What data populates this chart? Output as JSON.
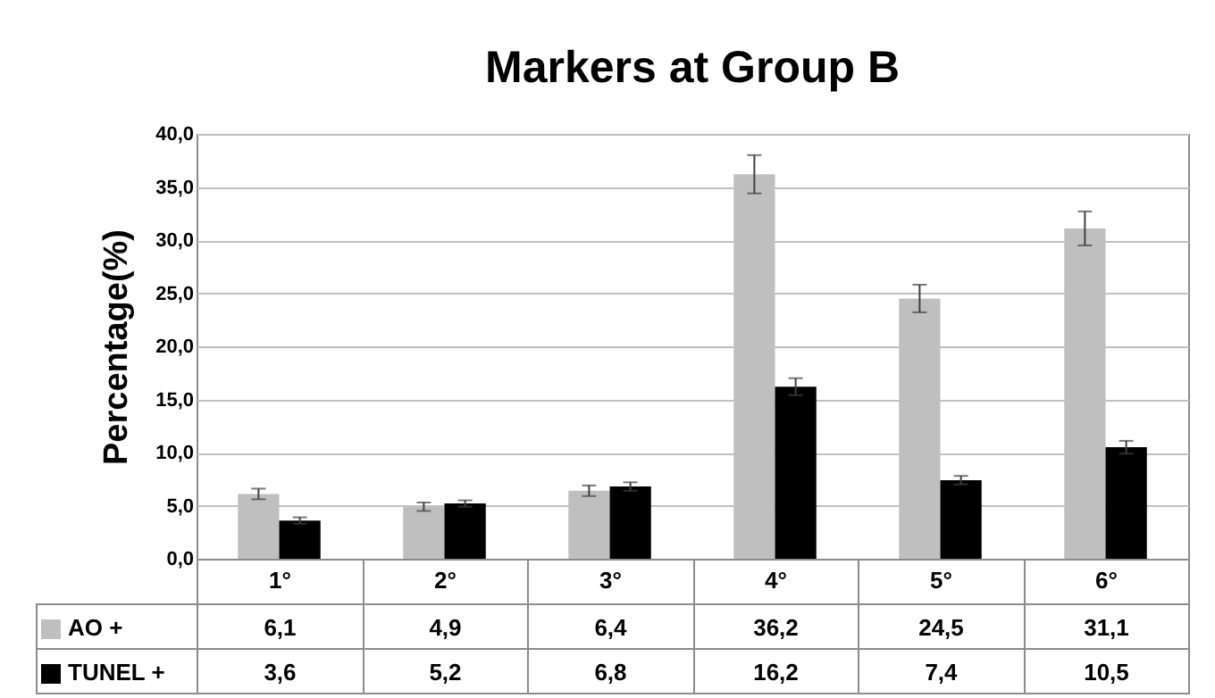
{
  "chart_data": {
    "type": "bar",
    "title": "Markers at Group B",
    "ylabel": "Percentage(%)",
    "categories": [
      "1°",
      "2°",
      "3°",
      "4°",
      "5°",
      "6°"
    ],
    "series": [
      {
        "name": "AO +",
        "color": "#bfbfbf",
        "values": [
          6.1,
          4.9,
          6.4,
          36.2,
          24.5,
          31.1
        ],
        "errors": [
          0.5,
          0.4,
          0.5,
          1.8,
          1.3,
          1.6
        ],
        "value_labels": [
          "6,1",
          "4,9",
          "6,4",
          "36,2",
          "24,5",
          "31,1"
        ]
      },
      {
        "name": "TUNEL +",
        "color": "#000000",
        "values": [
          3.6,
          5.2,
          6.8,
          16.2,
          7.4,
          10.5
        ],
        "errors": [
          0.3,
          0.3,
          0.4,
          0.8,
          0.4,
          0.6
        ],
        "value_labels": [
          "3,6",
          "5,2",
          "6,8",
          "16,2",
          "7,4",
          "10,5"
        ]
      }
    ],
    "ylim": [
      0,
      40
    ],
    "yticks": [
      {
        "value": 0,
        "label": "0,0"
      },
      {
        "value": 5,
        "label": "5,0"
      },
      {
        "value": 10,
        "label": "10,0"
      },
      {
        "value": 15,
        "label": "15,0"
      },
      {
        "value": 20,
        "label": "20,0"
      },
      {
        "value": 25,
        "label": "25,0"
      },
      {
        "value": 30,
        "label": "30,0"
      },
      {
        "value": 35,
        "label": "35,0"
      },
      {
        "value": 40,
        "label": "40,0"
      }
    ],
    "grid": "y",
    "legend": "bottom"
  }
}
